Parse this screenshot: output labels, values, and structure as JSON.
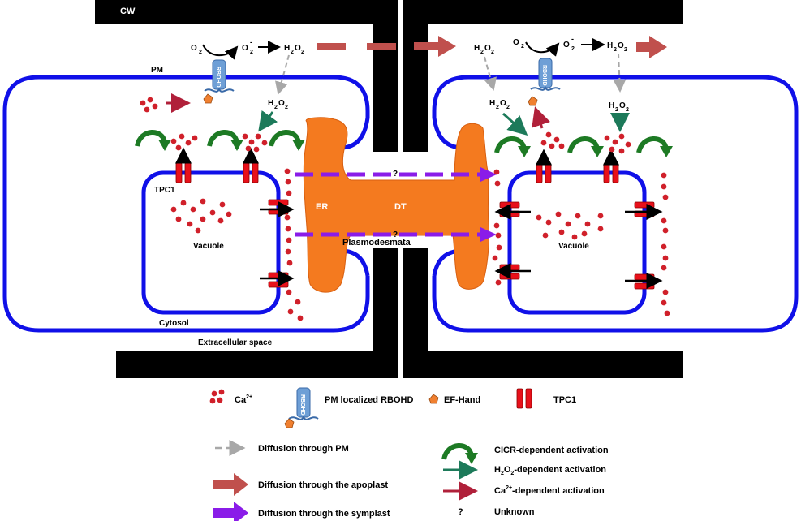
{
  "labels": {
    "cw": "CW",
    "pm": "PM",
    "o2_left": "O",
    "o2_right": "O",
    "sub2": "2",
    "superminus": "-",
    "h2o2_base": "H",
    "h2o2_o": "O",
    "rbohd": "RBOHD",
    "tpc1": "TPC1",
    "vacuole_left": "Vacuole",
    "vacuole_right": "Vacuole",
    "cytosol": "Cytosol",
    "extracellular": "Extracellular space",
    "er": "ER",
    "dt": "DT",
    "plasmodesmata": "Plasmodesmata",
    "unknown_mark": "?"
  },
  "legend": {
    "ca": "Ca",
    "ca_sup": "2+",
    "rbohd_label": "PM localized RBOHD",
    "efhand": "EF-Hand",
    "tpc1": "TPC1",
    "diff_pm": "Diffusion through PM",
    "diff_apoplast": "Diffusion through the apoplast",
    "diff_symplast": "Diffusion through the symplast",
    "cicr": "CICR-dependent activation",
    "h2o2_act_prefix": "H",
    "h2o2_act_mid": "O",
    "h2o2_act_suffix": "-dependent activation",
    "ca_act_prefix": "Ca",
    "ca_act_sup": "2+",
    "ca_act_suffix": "-dependent activation",
    "unknown_mark": "?",
    "unknown": "Unknown"
  },
  "colors": {
    "membrane": "#1010e8",
    "cell_wall": "#000000",
    "er": "#f47a1f",
    "calcium": "#d0202a",
    "tpc1": "#e8101a",
    "apoplast_arrow": "#c0504d",
    "symplast_arrow": "#8a1ce8",
    "pm_diffusion": "#a8a8a8",
    "cicr": "#1d7a24",
    "h2o2_activation": "#1d7a5a",
    "ca_activation": "#b0203a",
    "rbohd": "#6e9fd6",
    "efhand": "#f08030"
  }
}
